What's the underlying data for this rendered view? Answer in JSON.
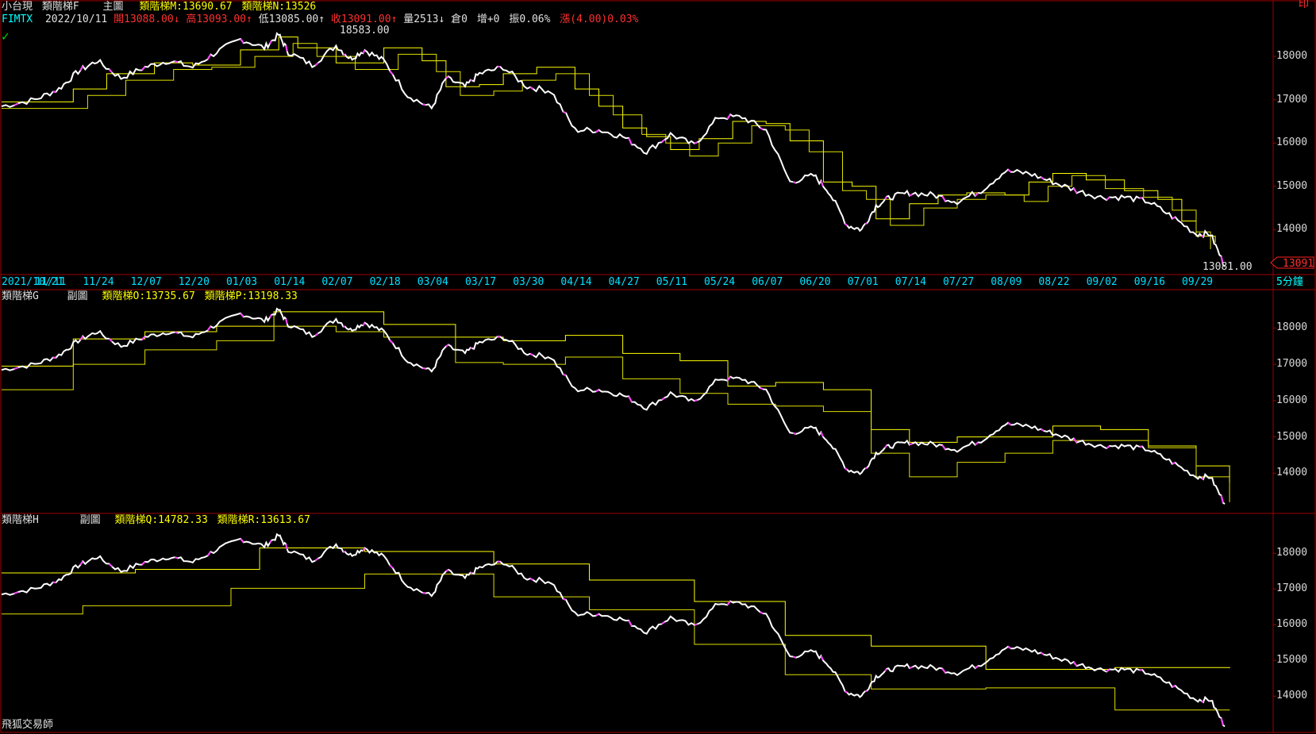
{
  "header": {
    "instrument": "小台現",
    "indicator": "類階梯F",
    "main_label": "主圖",
    "m_label": "類階梯M:13690.67",
    "n_label": "類階梯N:13526",
    "symbol": "FIMTX",
    "date": "2022/10/11",
    "open": "開13088.00↓",
    "high": "高13093.00↑",
    "low": "低13085.00↑",
    "close": "收13091.00↑",
    "volume": "量2513↓",
    "oi": "倉0",
    "change_oi": "增+0",
    "amplitude": "振0.06%",
    "change": "漲(4.00)0.03%",
    "corner": "印"
  },
  "panel2": {
    "title": "類階梯G",
    "sub_label": "副圖",
    "o_label": "類階梯O:13735.67",
    "p_label": "類階梯P:13198.33"
  },
  "panel3": {
    "title": "類階梯H",
    "sub_label": "副圖",
    "q_label": "類階梯Q:14782.33",
    "r_label": "類階梯R:13613.67"
  },
  "footer": {
    "brand": "飛狐交易師"
  },
  "timeframe": "5分鐘",
  "price_tag": "13091",
  "annotations": {
    "high_mark": "18583.00",
    "low_mark": "13081.00"
  },
  "colors": {
    "price": "#ffffff",
    "up_tick": "#ff40ff",
    "step": "#ffff00",
    "step_main": "#e0e000",
    "axis": "#a00000",
    "xlabel": "#00e0ff"
  },
  "chart_data": {
    "type": "line",
    "x_labels": [
      "2021/10/21",
      "11/11",
      "11/24",
      "12/07",
      "12/20",
      "01/03",
      "01/14",
      "02/07",
      "02/18",
      "03/04",
      "03/17",
      "03/30",
      "04/14",
      "04/27",
      "05/11",
      "05/24",
      "06/07",
      "06/20",
      "07/01",
      "07/14",
      "07/27",
      "08/09",
      "08/22",
      "09/02",
      "09/16",
      "09/29"
    ],
    "y_ticks": [
      14000,
      15000,
      16000,
      17000,
      18000
    ],
    "price_series": {
      "name": "小台現",
      "x": [
        0,
        0.7,
        1.2,
        1.6,
        2,
        2.5,
        3,
        3.5,
        4,
        4.5,
        5,
        5.5,
        5.8,
        6,
        6.5,
        7,
        7.3,
        7.6,
        8,
        8.5,
        9,
        9.3,
        9.7,
        10,
        10.5,
        11,
        11.5,
        12,
        12.5,
        13,
        13.5,
        14,
        14.5,
        15,
        15.5,
        16,
        16.5,
        17,
        17.3,
        17.7,
        18,
        18.3,
        18.6,
        19,
        19.5,
        20,
        20.5,
        21,
        21.5,
        22,
        22.5,
        23,
        23.5,
        24,
        24.5,
        25,
        25.3,
        25.6
      ],
      "y": [
        16850,
        17000,
        17250,
        17650,
        17900,
        17500,
        17750,
        17900,
        17750,
        18100,
        18400,
        18200,
        18500,
        18100,
        17800,
        18250,
        17950,
        18150,
        17900,
        17100,
        16800,
        17500,
        17300,
        17600,
        17750,
        17300,
        17200,
        16300,
        16300,
        16150,
        15800,
        16200,
        15950,
        16600,
        16600,
        16300,
        15100,
        15250,
        14900,
        14100,
        14000,
        14550,
        14750,
        14850,
        14800,
        14650,
        14900,
        15350,
        15300,
        15100,
        14900,
        14750,
        14750,
        14650,
        14300,
        13900,
        13900,
        13150
      ]
    },
    "ladder_main": {
      "name": "類階梯M",
      "x": [
        0,
        1.5,
        2.2,
        3.2,
        4,
        5,
        5.8,
        6.2,
        7,
        8,
        8.8,
        9.3,
        10,
        10.5,
        11.2,
        12,
        12.5,
        13,
        13.5,
        14,
        14.6,
        15.3,
        16,
        16.5,
        17.2,
        17.8,
        18.3,
        19,
        19.6,
        20.2,
        21,
        21.5,
        22,
        22.7,
        23.5,
        24.2,
        24.7,
        25,
        25.4
      ],
      "y": [
        16950,
        17250,
        17600,
        17850,
        17800,
        18150,
        18450,
        18200,
        17850,
        18200,
        17900,
        17300,
        17350,
        17600,
        17750,
        17250,
        16850,
        16350,
        16150,
        15850,
        16100,
        16500,
        16450,
        16050,
        15100,
        15000,
        14250,
        14600,
        14800,
        14850,
        14800,
        15100,
        15300,
        15150,
        14900,
        14700,
        14200,
        13850,
        13700
      ]
    },
    "ladder_n": {
      "name": "類階梯N",
      "x": [
        0,
        1.8,
        2.6,
        3.6,
        4.4,
        5.3,
        6.1,
        6.6,
        7.4,
        8.3,
        9.1,
        9.6,
        10.3,
        10.9,
        11.6,
        12.3,
        12.8,
        13.4,
        13.9,
        14.4,
        15,
        15.7,
        16.4,
        16.9,
        17.6,
        18.1,
        18.6,
        19.3,
        20,
        20.6,
        21.4,
        21.9,
        22.4,
        23.1,
        23.9,
        24.5,
        25,
        25.3
      ],
      "y": [
        16800,
        17100,
        17450,
        17700,
        17750,
        18000,
        18300,
        18000,
        17700,
        18050,
        17650,
        17100,
        17200,
        17450,
        17600,
        17100,
        16650,
        16200,
        16000,
        15700,
        16000,
        16400,
        16300,
        15800,
        14900,
        14700,
        14100,
        14500,
        14700,
        14800,
        14650,
        15000,
        15250,
        14950,
        14750,
        14450,
        13950,
        13550
      ]
    },
    "ladder_o": {
      "name": "類階梯O",
      "x": [
        0,
        1.5,
        3,
        4.5,
        5.7,
        7,
        8,
        9.5,
        10.5,
        11.8,
        13,
        14.2,
        15.2,
        16.2,
        17.2,
        18.2,
        19,
        20,
        21,
        22,
        23,
        24,
        25,
        25.7
      ],
      "y": [
        16950,
        17700,
        17900,
        18050,
        18450,
        18450,
        18100,
        17750,
        17650,
        17800,
        17300,
        17100,
        16400,
        16500,
        16300,
        15200,
        14850,
        15000,
        15000,
        15300,
        15200,
        14750,
        14200,
        13750
      ]
    },
    "ladder_p": {
      "name": "類階梯P",
      "x": [
        0,
        1.5,
        3,
        4.5,
        5.7,
        7,
        8,
        9.5,
        10.5,
        11.8,
        13,
        14.2,
        15.2,
        16.2,
        17.2,
        18.2,
        19,
        20,
        21,
        22,
        23,
        24,
        25,
        25.7
      ],
      "y": [
        16300,
        17000,
        17400,
        17650,
        18050,
        17900,
        17750,
        17050,
        17000,
        17200,
        16600,
        16200,
        15900,
        15850,
        15700,
        14550,
        13900,
        14300,
        14550,
        14900,
        14900,
        14700,
        13900,
        13200
      ]
    },
    "ladder_q": {
      "name": "類階梯Q",
      "x": [
        0,
        2.8,
        5.4,
        7.6,
        10.3,
        12.3,
        14.5,
        16.4,
        18.2,
        20.6,
        23.3,
        25.7
      ],
      "y": [
        17450,
        17550,
        18150,
        18050,
        17700,
        17250,
        16650,
        15700,
        15400,
        14750,
        14800,
        14782
      ]
    },
    "ladder_r": {
      "name": "類階梯R",
      "x": [
        0,
        1.7,
        4.8,
        7.6,
        10.3,
        12.3,
        14.5,
        16.4,
        18.2,
        20.6,
        23.3,
        25.7
      ],
      "y": [
        16300,
        16530,
        17020,
        17420,
        16780,
        16420,
        15450,
        14600,
        14200,
        14230,
        13610,
        13614
      ]
    }
  }
}
